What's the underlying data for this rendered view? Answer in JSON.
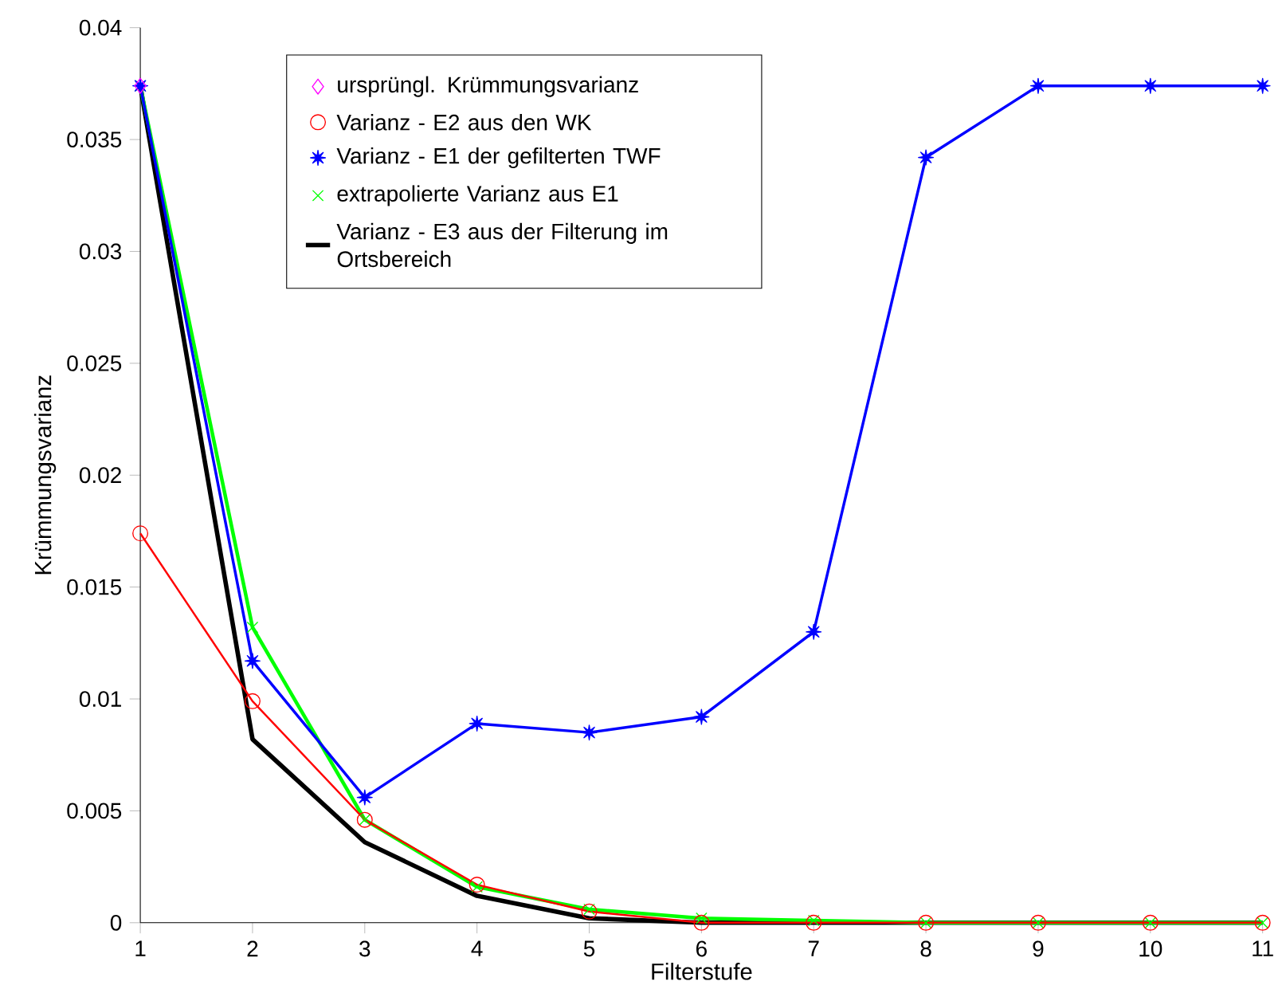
{
  "chart_data": {
    "type": "line",
    "xlabel": "Filterstufe",
    "ylabel": "Krümmungsvarianz",
    "x": [
      1,
      2,
      3,
      4,
      5,
      6,
      7,
      8,
      9,
      10,
      11
    ],
    "series": [
      {
        "name": "ursprüngl. Krümmungsvarianz",
        "color": "#ff00ff",
        "marker": "diamond",
        "values": [
          0.0374,
          null,
          null,
          null,
          null,
          null,
          null,
          null,
          null,
          null,
          null
        ]
      },
      {
        "name": "Varianz - E2 aus den WK",
        "color": "#ff0000",
        "marker": "circle",
        "line_style": "solid",
        "values": [
          0.0174,
          0.0099,
          0.0046,
          0.0017,
          0.0005,
          0.0,
          0.0,
          0.0,
          0.0,
          0.0,
          0.0
        ]
      },
      {
        "name": "Varianz - E1 der gefilterten TWF",
        "color": "#0000ff",
        "marker": "star",
        "line_style": "solid",
        "values": [
          0.0374,
          0.0117,
          0.0056,
          0.0089,
          0.0085,
          0.0092,
          0.013,
          0.0342,
          0.0374,
          0.0374,
          0.0374
        ]
      },
      {
        "name": "extrapolierte Varianz aus E1",
        "color": "#00ff00",
        "marker": "cross",
        "line_style": "solid",
        "values": [
          0.0374,
          0.0132,
          0.0046,
          0.0016,
          0.0006,
          0.0002,
          0.0001,
          0.0,
          0.0,
          0.0,
          0.0
        ]
      },
      {
        "name": "Varianz - E3 aus der Filterung im Ortsbereich",
        "color": "#000000",
        "marker": "none",
        "line_style": "solid",
        "values": [
          0.0374,
          0.0082,
          0.0036,
          0.0012,
          0.0002,
          0.0,
          0.0,
          0.0,
          0.0,
          0.0,
          0.0
        ]
      }
    ],
    "xlim": [
      1,
      11
    ],
    "ylim": [
      0,
      0.04
    ],
    "xticks": [
      1,
      2,
      3,
      4,
      5,
      6,
      7,
      8,
      9,
      10,
      11
    ],
    "yticks": [
      0,
      0.005,
      0.01,
      0.015,
      0.02,
      0.025,
      0.03,
      0.035,
      0.04
    ],
    "grid": false,
    "legend": "top left"
  }
}
